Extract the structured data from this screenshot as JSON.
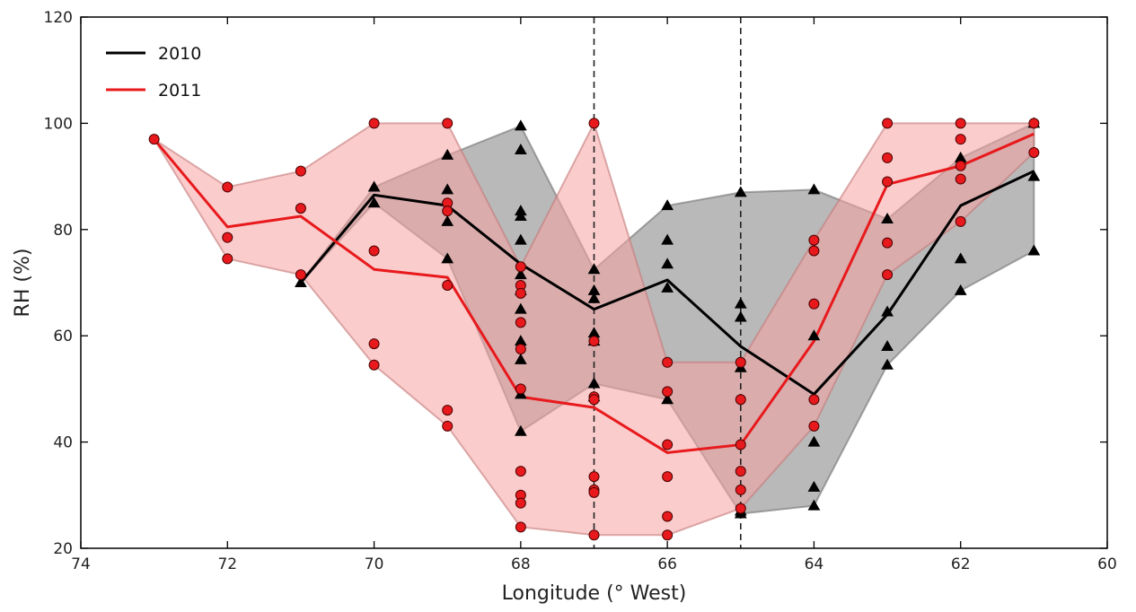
{
  "chart_data": {
    "type": "line",
    "xlabel": "Longitude (° West)",
    "ylabel": "RH (%)",
    "xlim": [
      74,
      60
    ],
    "ylim": [
      20,
      120
    ],
    "x_ticks": [
      74,
      72,
      70,
      68,
      66,
      64,
      62,
      60
    ],
    "y_ticks": [
      20,
      40,
      60,
      80,
      100,
      120
    ],
    "x_tick_labels": [
      "74",
      "72",
      "70",
      "68",
      "66",
      "64",
      "62",
      "60"
    ],
    "y_tick_labels": [
      "20",
      "40",
      "60",
      "80",
      "100",
      "120"
    ],
    "grid": false,
    "legend_position": "top-left",
    "vertical_reference_lines": [
      67,
      65
    ],
    "series": [
      {
        "name": "2010",
        "color": "#000000",
        "marker": "triangle",
        "band_color": "#808080",
        "mean": [
          {
            "x": 71,
            "y": 70
          },
          {
            "x": 70,
            "y": 86.5
          },
          {
            "x": 69,
            "y": 84.5
          },
          {
            "x": 68,
            "y": 73.5
          },
          {
            "x": 67,
            "y": 65
          },
          {
            "x": 66,
            "y": 70.5
          },
          {
            "x": 65,
            "y": 58
          },
          {
            "x": 64,
            "y": 49
          },
          {
            "x": 63,
            "y": 64
          },
          {
            "x": 62,
            "y": 84.5
          },
          {
            "x": 61,
            "y": 91
          }
        ],
        "band_upper": [
          {
            "x": 71,
            "y": 70
          },
          {
            "x": 70,
            "y": 88
          },
          {
            "x": 69,
            "y": 94
          },
          {
            "x": 68,
            "y": 99.5
          },
          {
            "x": 67,
            "y": 72.5
          },
          {
            "x": 66,
            "y": 84.5
          },
          {
            "x": 65,
            "y": 87
          },
          {
            "x": 64,
            "y": 87.5
          },
          {
            "x": 63,
            "y": 82
          },
          {
            "x": 62,
            "y": 93.5
          },
          {
            "x": 61,
            "y": 100
          }
        ],
        "band_lower": [
          {
            "x": 71,
            "y": 70
          },
          {
            "x": 70,
            "y": 85
          },
          {
            "x": 69,
            "y": 74.5
          },
          {
            "x": 68,
            "y": 42
          },
          {
            "x": 67,
            "y": 51
          },
          {
            "x": 66,
            "y": 48
          },
          {
            "x": 65,
            "y": 26.5
          },
          {
            "x": 64,
            "y": 28
          },
          {
            "x": 63,
            "y": 54.5
          },
          {
            "x": 62,
            "y": 68.5
          },
          {
            "x": 61,
            "y": 76
          }
        ],
        "points": [
          {
            "x": 71,
            "y": 70
          },
          {
            "x": 70,
            "y": 88
          },
          {
            "x": 70,
            "y": 85
          },
          {
            "x": 69,
            "y": 94
          },
          {
            "x": 69,
            "y": 87.5
          },
          {
            "x": 69,
            "y": 81.5
          },
          {
            "x": 69,
            "y": 74.5
          },
          {
            "x": 68,
            "y": 99.5
          },
          {
            "x": 68,
            "y": 95
          },
          {
            "x": 68,
            "y": 83.5
          },
          {
            "x": 68,
            "y": 82.5
          },
          {
            "x": 68,
            "y": 78
          },
          {
            "x": 68,
            "y": 71.5
          },
          {
            "x": 68,
            "y": 68.5
          },
          {
            "x": 68,
            "y": 65
          },
          {
            "x": 68,
            "y": 59
          },
          {
            "x": 68,
            "y": 55.5
          },
          {
            "x": 68,
            "y": 49
          },
          {
            "x": 68,
            "y": 42
          },
          {
            "x": 67,
            "y": 72.5
          },
          {
            "x": 67,
            "y": 68.5
          },
          {
            "x": 67,
            "y": 67
          },
          {
            "x": 67,
            "y": 60.5
          },
          {
            "x": 67,
            "y": 59
          },
          {
            "x": 67,
            "y": 51
          },
          {
            "x": 67,
            "y": 48.5
          },
          {
            "x": 66,
            "y": 84.5
          },
          {
            "x": 66,
            "y": 78
          },
          {
            "x": 66,
            "y": 73.5
          },
          {
            "x": 66,
            "y": 69
          },
          {
            "x": 66,
            "y": 48
          },
          {
            "x": 65,
            "y": 87
          },
          {
            "x": 65,
            "y": 66
          },
          {
            "x": 65,
            "y": 63.5
          },
          {
            "x": 65,
            "y": 54
          },
          {
            "x": 65,
            "y": 27
          },
          {
            "x": 65,
            "y": 26.5
          },
          {
            "x": 64,
            "y": 87.5
          },
          {
            "x": 64,
            "y": 60
          },
          {
            "x": 64,
            "y": 40
          },
          {
            "x": 64,
            "y": 31.5
          },
          {
            "x": 64,
            "y": 28
          },
          {
            "x": 63,
            "y": 82
          },
          {
            "x": 63,
            "y": 64.5
          },
          {
            "x": 63,
            "y": 58
          },
          {
            "x": 63,
            "y": 54.5
          },
          {
            "x": 62,
            "y": 93.5
          },
          {
            "x": 62,
            "y": 74.5
          },
          {
            "x": 62,
            "y": 68.5
          },
          {
            "x": 61,
            "y": 100
          },
          {
            "x": 61,
            "y": 90
          },
          {
            "x": 61,
            "y": 76
          }
        ]
      },
      {
        "name": "2011",
        "color": "#e8191c",
        "marker": "circle",
        "band_color": "#f5a3a3",
        "mean": [
          {
            "x": 73,
            "y": 97
          },
          {
            "x": 72,
            "y": 80.5
          },
          {
            "x": 71,
            "y": 82.5
          },
          {
            "x": 70,
            "y": 72.5
          },
          {
            "x": 69,
            "y": 71
          },
          {
            "x": 68,
            "y": 48.5
          },
          {
            "x": 67,
            "y": 46.5
          },
          {
            "x": 66,
            "y": 38
          },
          {
            "x": 65,
            "y": 39.5
          },
          {
            "x": 64,
            "y": 59
          },
          {
            "x": 63,
            "y": 88.5
          },
          {
            "x": 62,
            "y": 92
          },
          {
            "x": 61,
            "y": 98
          }
        ],
        "band_upper": [
          {
            "x": 73,
            "y": 97
          },
          {
            "x": 72,
            "y": 88
          },
          {
            "x": 71,
            "y": 91
          },
          {
            "x": 70,
            "y": 100
          },
          {
            "x": 69,
            "y": 100
          },
          {
            "x": 68,
            "y": 73
          },
          {
            "x": 67,
            "y": 100
          },
          {
            "x": 66,
            "y": 55
          },
          {
            "x": 65,
            "y": 55
          },
          {
            "x": 64,
            "y": 78
          },
          {
            "x": 63,
            "y": 100
          },
          {
            "x": 62,
            "y": 100
          },
          {
            "x": 61,
            "y": 100
          }
        ],
        "band_lower": [
          {
            "x": 73,
            "y": 97
          },
          {
            "x": 72,
            "y": 74.5
          },
          {
            "x": 71,
            "y": 71.5
          },
          {
            "x": 70,
            "y": 54.5
          },
          {
            "x": 69,
            "y": 43
          },
          {
            "x": 68,
            "y": 24
          },
          {
            "x": 67,
            "y": 22.5
          },
          {
            "x": 66,
            "y": 22.5
          },
          {
            "x": 65,
            "y": 27.5
          },
          {
            "x": 64,
            "y": 43
          },
          {
            "x": 63,
            "y": 71.5
          },
          {
            "x": 62,
            "y": 81.5
          },
          {
            "x": 61,
            "y": 94.5
          }
        ],
        "points": [
          {
            "x": 73,
            "y": 97
          },
          {
            "x": 72,
            "y": 88
          },
          {
            "x": 72,
            "y": 78.5
          },
          {
            "x": 72,
            "y": 74.5
          },
          {
            "x": 71,
            "y": 91
          },
          {
            "x": 71,
            "y": 84
          },
          {
            "x": 71,
            "y": 71.5
          },
          {
            "x": 70,
            "y": 100
          },
          {
            "x": 70,
            "y": 76
          },
          {
            "x": 70,
            "y": 58.5
          },
          {
            "x": 70,
            "y": 54.5
          },
          {
            "x": 69,
            "y": 100
          },
          {
            "x": 69,
            "y": 85
          },
          {
            "x": 69,
            "y": 83.5
          },
          {
            "x": 69,
            "y": 69.5
          },
          {
            "x": 69,
            "y": 46
          },
          {
            "x": 69,
            "y": 43
          },
          {
            "x": 68,
            "y": 73
          },
          {
            "x": 68,
            "y": 69.5
          },
          {
            "x": 68,
            "y": 68
          },
          {
            "x": 68,
            "y": 62.5
          },
          {
            "x": 68,
            "y": 57.5
          },
          {
            "x": 68,
            "y": 50
          },
          {
            "x": 68,
            "y": 34.5
          },
          {
            "x": 68,
            "y": 30
          },
          {
            "x": 68,
            "y": 28.5
          },
          {
            "x": 68,
            "y": 24
          },
          {
            "x": 67,
            "y": 100
          },
          {
            "x": 67,
            "y": 59
          },
          {
            "x": 67,
            "y": 48.5
          },
          {
            "x": 67,
            "y": 48
          },
          {
            "x": 67,
            "y": 33.5
          },
          {
            "x": 67,
            "y": 31
          },
          {
            "x": 67,
            "y": 30.5
          },
          {
            "x": 67,
            "y": 22.5
          },
          {
            "x": 66,
            "y": 55
          },
          {
            "x": 66,
            "y": 49.5
          },
          {
            "x": 66,
            "y": 39.5
          },
          {
            "x": 66,
            "y": 33.5
          },
          {
            "x": 66,
            "y": 26
          },
          {
            "x": 66,
            "y": 22.5
          },
          {
            "x": 65,
            "y": 55
          },
          {
            "x": 65,
            "y": 48
          },
          {
            "x": 65,
            "y": 39.5
          },
          {
            "x": 65,
            "y": 34.5
          },
          {
            "x": 65,
            "y": 31
          },
          {
            "x": 65,
            "y": 27.5
          },
          {
            "x": 64,
            "y": 78
          },
          {
            "x": 64,
            "y": 76
          },
          {
            "x": 64,
            "y": 66
          },
          {
            "x": 64,
            "y": 48
          },
          {
            "x": 64,
            "y": 43
          },
          {
            "x": 63,
            "y": 100
          },
          {
            "x": 63,
            "y": 93.5
          },
          {
            "x": 63,
            "y": 89
          },
          {
            "x": 63,
            "y": 77.5
          },
          {
            "x": 63,
            "y": 71.5
          },
          {
            "x": 62,
            "y": 100
          },
          {
            "x": 62,
            "y": 97
          },
          {
            "x": 62,
            "y": 92
          },
          {
            "x": 62,
            "y": 89.5
          },
          {
            "x": 62,
            "y": 81.5
          },
          {
            "x": 61,
            "y": 100
          },
          {
            "x": 61,
            "y": 94.5
          }
        ]
      }
    ]
  }
}
